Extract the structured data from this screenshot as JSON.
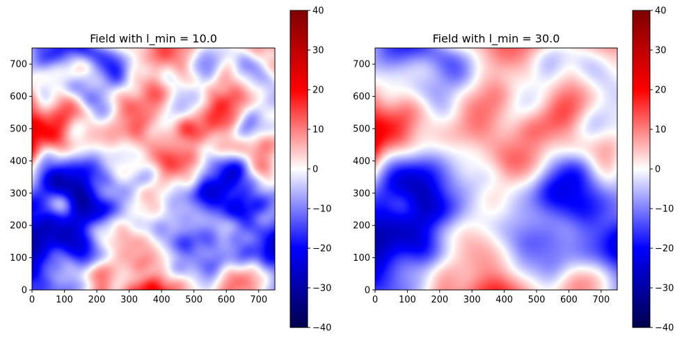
{
  "chart_data": [
    {
      "type": "heatmap",
      "title": "Field with l_min = 10.0",
      "xlabel": "",
      "ylabel": "",
      "xlim": [
        0,
        750
      ],
      "ylim": [
        0,
        750
      ],
      "xticks": [
        0,
        100,
        200,
        300,
        400,
        500,
        600,
        700
      ],
      "yticks": [
        0,
        100,
        200,
        300,
        400,
        500,
        600,
        700
      ],
      "colormap": "seismic",
      "colorbar": {
        "range": [
          -40,
          40
        ],
        "ticks": [
          40,
          30,
          20,
          10,
          0,
          -10,
          -20,
          -30,
          -40
        ],
        "tick_labels": [
          "40",
          "30",
          "20",
          "10",
          "0",
          "−10",
          "−20",
          "−30",
          "−40"
        ]
      },
      "grid": false,
      "smoothness": "fine"
    },
    {
      "type": "heatmap",
      "title": "Field with l_min = 30.0",
      "xlabel": "",
      "ylabel": "",
      "xlim": [
        0,
        750
      ],
      "ylim": [
        0,
        750
      ],
      "xticks": [
        0,
        100,
        200,
        300,
        400,
        500,
        600,
        700
      ],
      "yticks": [
        0,
        100,
        200,
        300,
        400,
        500,
        600,
        700
      ],
      "colormap": "seismic",
      "colorbar": {
        "range": [
          -40,
          40
        ],
        "ticks": [
          40,
          30,
          20,
          10,
          0,
          -10,
          -20,
          -30,
          -40
        ],
        "tick_labels": [
          "40",
          "30",
          "20",
          "10",
          "0",
          "−10",
          "−20",
          "−30",
          "−40"
        ]
      },
      "grid": false,
      "smoothness": "smooth"
    }
  ],
  "colors": {
    "seismic_low": "#00004d",
    "seismic_blue": "#0000ff",
    "seismic_mid": "#ffffff",
    "seismic_red": "#ff0000",
    "seismic_high": "#800000"
  }
}
